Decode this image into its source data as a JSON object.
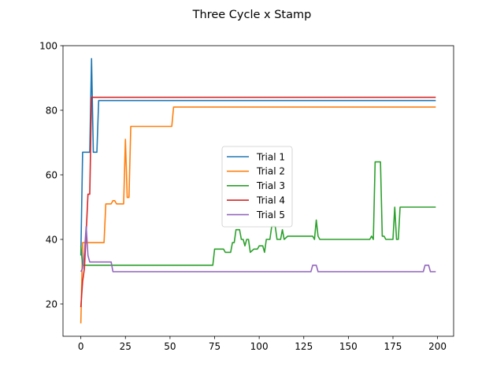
{
  "chart_data": {
    "type": "line",
    "title": "Three Cycle x Stamp",
    "xlabel": "",
    "ylabel": "",
    "xlim": [
      -10,
      209
    ],
    "ylim": [
      10,
      100
    ],
    "xticks": [
      0,
      25,
      50,
      75,
      100,
      125,
      150,
      175,
      200
    ],
    "yticks": [
      20,
      40,
      60,
      80,
      100
    ],
    "grid": false,
    "legend_position": "center",
    "series": [
      {
        "name": "Trial 1",
        "color": "#1f77b4",
        "points": [
          [
            0,
            35
          ],
          [
            1,
            67
          ],
          [
            5,
            67
          ],
          [
            6,
            96
          ],
          [
            7,
            67
          ],
          [
            9,
            67
          ],
          [
            10,
            83
          ],
          [
            199,
            83
          ]
        ]
      },
      {
        "name": "Trial 2",
        "color": "#ff7f0e",
        "points": [
          [
            0,
            14
          ],
          [
            1,
            39
          ],
          [
            13,
            39
          ],
          [
            14,
            51
          ],
          [
            17,
            51
          ],
          [
            18,
            52
          ],
          [
            19,
            52
          ],
          [
            20,
            51
          ],
          [
            24,
            51
          ],
          [
            25,
            71
          ],
          [
            26,
            53
          ],
          [
            27,
            53
          ],
          [
            28,
            75
          ],
          [
            51,
            75
          ],
          [
            52,
            81
          ],
          [
            199,
            81
          ]
        ]
      },
      {
        "name": "Trial 3",
        "color": "#2ca02c",
        "points": [
          [
            0,
            38
          ],
          [
            1,
            32
          ],
          [
            74,
            32
          ],
          [
            75,
            37
          ],
          [
            80,
            37
          ],
          [
            81,
            36
          ],
          [
            84,
            36
          ],
          [
            85,
            39
          ],
          [
            86,
            39
          ],
          [
            87,
            43
          ],
          [
            89,
            43
          ],
          [
            90,
            40
          ],
          [
            91,
            40
          ],
          [
            92,
            38
          ],
          [
            93,
            40
          ],
          [
            94,
            40
          ],
          [
            95,
            36
          ],
          [
            97,
            37
          ],
          [
            99,
            37
          ],
          [
            100,
            38
          ],
          [
            102,
            38
          ],
          [
            103,
            36
          ],
          [
            104,
            40
          ],
          [
            106,
            40
          ],
          [
            107,
            44
          ],
          [
            109,
            44
          ],
          [
            110,
            40
          ],
          [
            112,
            40
          ],
          [
            113,
            43
          ],
          [
            114,
            40
          ],
          [
            116,
            41
          ],
          [
            130,
            41
          ],
          [
            131,
            40
          ],
          [
            132,
            46
          ],
          [
            133,
            41
          ],
          [
            134,
            40
          ],
          [
            162,
            40
          ],
          [
            163,
            41
          ],
          [
            164,
            40
          ],
          [
            165,
            64
          ],
          [
            168,
            64
          ],
          [
            169,
            41
          ],
          [
            170,
            41
          ],
          [
            171,
            40
          ],
          [
            175,
            40
          ],
          [
            176,
            50
          ],
          [
            177,
            40
          ],
          [
            178,
            40
          ],
          [
            179,
            50
          ],
          [
            199,
            50
          ]
        ]
      },
      {
        "name": "Trial 4",
        "color": "#d62728",
        "points": [
          [
            0,
            19
          ],
          [
            1,
            27
          ],
          [
            2,
            31
          ],
          [
            3,
            42
          ],
          [
            4,
            54
          ],
          [
            5,
            54
          ],
          [
            6,
            84
          ],
          [
            199,
            84
          ]
        ]
      },
      {
        "name": "Trial 5",
        "color": "#9467bd",
        "points": [
          [
            0,
            30
          ],
          [
            1,
            31
          ],
          [
            2,
            36
          ],
          [
            3,
            44
          ],
          [
            4,
            35
          ],
          [
            5,
            33
          ],
          [
            16,
            33
          ],
          [
            17,
            33
          ],
          [
            18,
            30
          ],
          [
            129,
            30
          ],
          [
            130,
            32
          ],
          [
            132,
            32
          ],
          [
            133,
            30
          ],
          [
            192,
            30
          ],
          [
            193,
            32
          ],
          [
            195,
            32
          ],
          [
            196,
            30
          ],
          [
            199,
            30
          ]
        ]
      }
    ]
  }
}
